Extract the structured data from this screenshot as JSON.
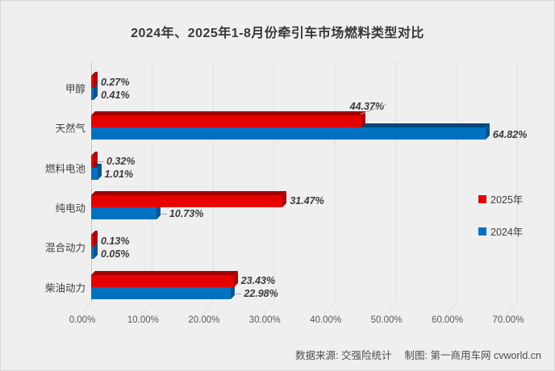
{
  "chart_data": {
    "type": "bar",
    "orientation": "horizontal",
    "title": "2024年、2025年1-8月份牵引车市场燃料类型对比",
    "categories": [
      "甲醇",
      "天然气",
      "燃料电池",
      "纯电动",
      "混合动力",
      "柴油动力"
    ],
    "series": [
      {
        "name": "2025年",
        "color": "#e60000",
        "bevel_color": "#a30000",
        "side_color": "#b00000",
        "values": [
          0.27,
          44.37,
          0.32,
          31.47,
          0.13,
          23.43
        ],
        "labels": [
          "0.27%",
          "44.37%",
          "0.32%",
          "31.47%",
          "0.13%",
          "23.43%"
        ]
      },
      {
        "name": "2024年",
        "color": "#0071c1",
        "bevel_color": "#00477c",
        "side_color": "#005592",
        "values": [
          0.41,
          64.82,
          1.01,
          10.73,
          0.05,
          22.98
        ],
        "labels": [
          "0.41%",
          "64.82%",
          "1.01%",
          "10.73%",
          "0.05%",
          "22.98%"
        ]
      }
    ],
    "xlim": [
      0,
      70
    ],
    "x_ticks": [
      "0.00%",
      "10.00%",
      "20.00%",
      "30.00%",
      "40.00%",
      "50.00%",
      "60.00%",
      "70.00%"
    ],
    "grid": true,
    "legend_position": "right",
    "label_placements": {
      "series0": [
        "right",
        "above",
        "dash",
        "right",
        "right",
        "right"
      ],
      "series1": [
        "right",
        "right",
        "right",
        "dash",
        "right",
        "dash"
      ]
    }
  },
  "footer": {
    "source": "数据来源: 交强险统计",
    "credit": "制图: 第一商用车网 cvworld.cn"
  },
  "colors": {
    "background": "#efefef",
    "grid": "#e0e0e0",
    "axis": "#c9c9c9",
    "leader": "#a6a6a6"
  }
}
